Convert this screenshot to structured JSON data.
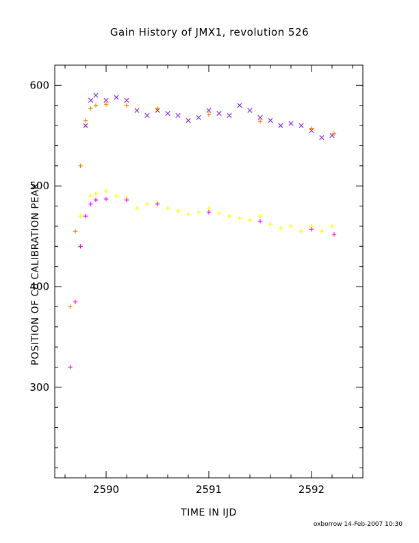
{
  "chart_data": {
    "type": "scatter",
    "title": "Gain History of JMX1, revolution 526",
    "xlabel": "TIME IN IJD",
    "ylabel": "POSITION OF Cd CALIBRATION PEAK",
    "xlim": [
      2589.5,
      2592.5
    ],
    "ylim": [
      210,
      620
    ],
    "x_ticks": [
      2590,
      2591,
      2592
    ],
    "y_ticks": [
      300,
      400,
      500,
      600
    ],
    "grid": false,
    "legend": "none",
    "series": [
      {
        "marker": "x",
        "color": "#8a2be2",
        "x": [
          2589.8,
          2589.85,
          2589.9,
          2590.0,
          2590.1,
          2590.2,
          2590.3,
          2590.4,
          2590.5,
          2590.6,
          2590.7,
          2590.8,
          2590.9,
          2591.0,
          2591.1,
          2591.2,
          2591.3,
          2591.4,
          2591.5,
          2591.6,
          2591.7,
          2591.8,
          2591.9,
          2592.0,
          2592.1,
          2592.2
        ],
        "y": [
          560,
          585,
          590,
          585,
          588,
          585,
          575,
          570,
          575,
          572,
          570,
          565,
          568,
          575,
          572,
          570,
          580,
          575,
          568,
          565,
          560,
          562,
          560,
          555,
          548,
          550
        ]
      },
      {
        "marker": "+",
        "color": "#ffff00",
        "x": [
          2589.75,
          2589.85,
          2589.9,
          2590.0,
          2590.1,
          2590.2,
          2590.3,
          2590.4,
          2590.5,
          2590.6,
          2590.7,
          2590.8,
          2590.9,
          2591.0,
          2591.1,
          2591.2,
          2591.3,
          2591.4,
          2591.5,
          2591.6,
          2591.7,
          2591.8,
          2591.9,
          2592.0,
          2592.1,
          2592.2
        ],
        "y": [
          470,
          490,
          492,
          495,
          490,
          488,
          478,
          482,
          483,
          478,
          475,
          472,
          474,
          478,
          473,
          470,
          468,
          466,
          470,
          462,
          458,
          460,
          455,
          460,
          455,
          460
        ]
      },
      {
        "marker": "+",
        "color": "#ff8000",
        "x": [
          2589.65,
          2589.7,
          2589.75,
          2589.8,
          2589.85,
          2589.9,
          2590.0,
          2590.2,
          2590.5,
          2591.0,
          2591.5,
          2592.0,
          2592.22
        ],
        "y": [
          380,
          455,
          520,
          565,
          577,
          580,
          581,
          580,
          577,
          571,
          564,
          557,
          552
        ]
      },
      {
        "marker": "+",
        "color": "#ff00ff",
        "x": [
          2589.65,
          2589.7,
          2589.75,
          2589.8,
          2589.85,
          2589.9,
          2590.0,
          2590.2,
          2590.5,
          2591.0,
          2591.5,
          2592.0,
          2592.22
        ],
        "y": [
          320,
          385,
          440,
          470,
          482,
          486,
          487,
          486,
          482,
          474,
          465,
          457,
          452
        ]
      }
    ]
  },
  "footer": "oxborrow 14-Feb-2007 10:30"
}
